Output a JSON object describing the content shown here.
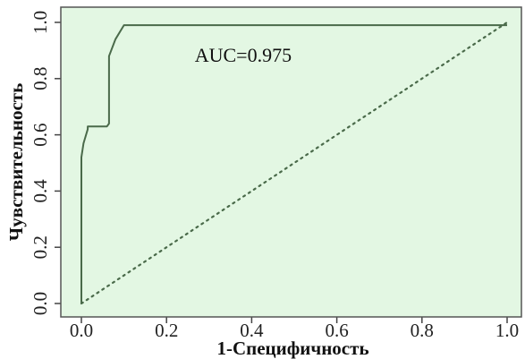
{
  "chart_data": {
    "type": "line",
    "xlabel": "1-Специфичность",
    "ylabel": "Чувствительность",
    "xlim": [
      0,
      1
    ],
    "ylim": [
      0,
      1
    ],
    "x_ticks": [
      "0.0",
      "0.2",
      "0.4",
      "0.6",
      "0.8",
      "1.0"
    ],
    "y_ticks": [
      "0.0",
      "0.2",
      "0.4",
      "0.6",
      "0.8",
      "1.0"
    ],
    "grid": false,
    "background_color": "#e3f7e3",
    "series": [
      {
        "style": "solid",
        "color": "#4a6a4a",
        "x": [
          0.0,
          0.0,
          0.005,
          0.015,
          0.015,
          0.06,
          0.065,
          0.065,
          0.08,
          0.1,
          1.0
        ],
        "y": [
          0.0,
          0.52,
          0.57,
          0.62,
          0.63,
          0.63,
          0.64,
          0.88,
          0.94,
          0.99,
          0.99
        ]
      },
      {
        "style": "dotted",
        "color": "#4a6a4a",
        "x": [
          0,
          1
        ],
        "y": [
          0,
          1
        ]
      }
    ],
    "annotations": [
      {
        "text": "AUC=0.975",
        "x": 0.38,
        "y": 0.86
      }
    ]
  }
}
